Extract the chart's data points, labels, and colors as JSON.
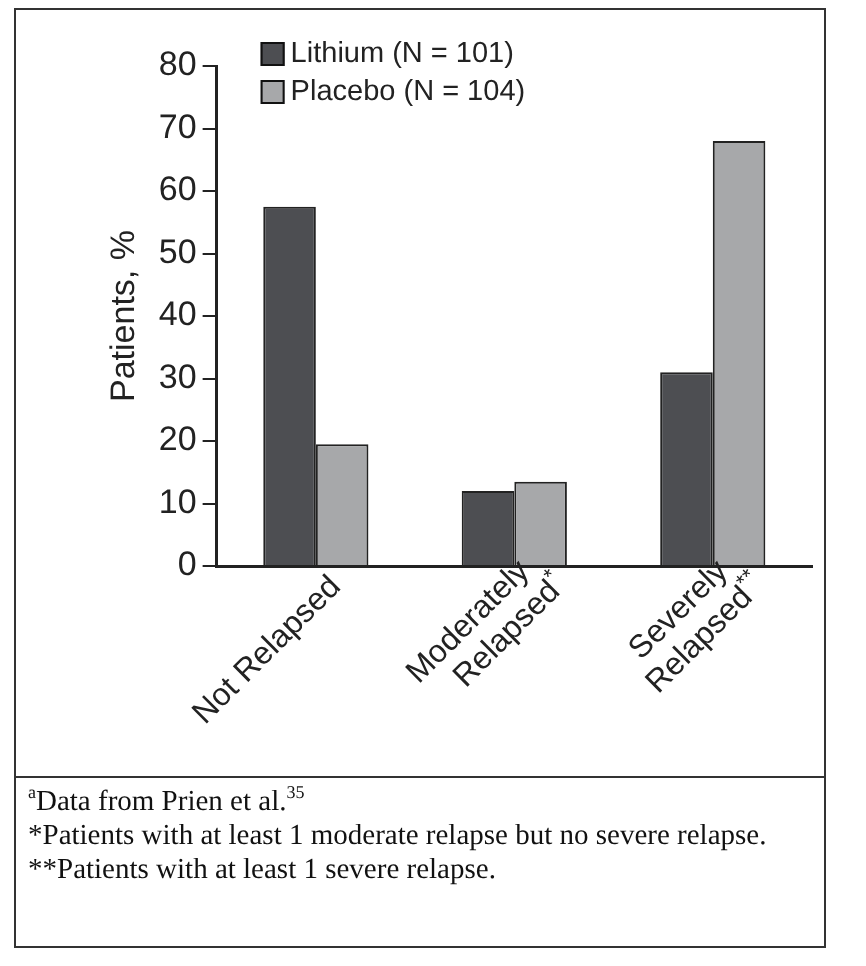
{
  "chart_data": {
    "type": "bar",
    "ylabel": "Patients, %",
    "categories": [
      "Not Relapsed",
      "Moderately Relapsed$^{*}$",
      "Severely Relapsed$^{**}$"
    ],
    "series": [
      {
        "name": "Lithium (N = 101)",
        "color": "#4d4e52",
        "values": [
          57.5,
          12,
          31
        ]
      },
      {
        "name": "Placebo (N = 104)",
        "color": "#a7a8aa",
        "values": [
          19.5,
          13.5,
          68
        ]
      }
    ],
    "ylim": [
      0,
      80
    ],
    "yticks": [
      0,
      10,
      20,
      30,
      40,
      50,
      60,
      70,
      80
    ],
    "grid": false,
    "legend": "top left",
    "annotations": [
      "$^{a}$Data from Prien et al.$^{35}$",
      "*Patients with at least 1 moderate relapse but no severe relapse.",
      "**Patients with at least 1 severe relapse."
    ]
  }
}
